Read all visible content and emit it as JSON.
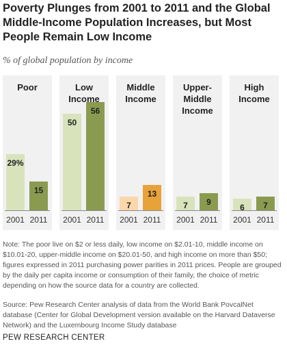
{
  "chart_data": {
    "type": "bar",
    "title": "Poverty Plunges from 2001 to 2011 and the Global Middle-Income Population Increases, but Most People Remain Low Income",
    "subtitle": "% of global population by income",
    "years": [
      "2001",
      "2011"
    ],
    "ylim": [
      0,
      60
    ],
    "groups": [
      {
        "label_lines": [
          "Poor"
        ],
        "values": [
          29,
          15
        ],
        "labels": [
          "29%",
          "15"
        ],
        "colors": [
          "#d8e3bc",
          "#8a9b50"
        ]
      },
      {
        "label_lines": [
          "Low",
          "Income"
        ],
        "values": [
          50,
          56
        ],
        "labels": [
          "50",
          "56"
        ],
        "colors": [
          "#d8e3bc",
          "#8a9b50"
        ]
      },
      {
        "label_lines": [
          "Middle",
          "Income"
        ],
        "values": [
          7,
          13
        ],
        "labels": [
          "7",
          "13"
        ],
        "colors": [
          "#fbd7aa",
          "#e8a23a"
        ]
      },
      {
        "label_lines": [
          "Upper-",
          "Middle",
          "Income"
        ],
        "values": [
          7,
          9
        ],
        "labels": [
          "7",
          "9"
        ],
        "colors": [
          "#d8e3bc",
          "#8a9b50"
        ]
      },
      {
        "label_lines": [
          "High",
          "Income"
        ],
        "values": [
          6,
          7
        ],
        "labels": [
          "6",
          "7"
        ],
        "colors": [
          "#d8e3bc",
          "#8a9b50"
        ]
      }
    ],
    "grid": false,
    "legend": "none"
  },
  "note": "Note: The poor live on $2 or less daily, low income on $2.01-10, middle income on $10.01-20, upper-middle income on $20.01-50, and high income on more than $50; figures expressed in 2011 purchasing power parities in 2011 prices. People are grouped by the daily per capita income or consumption of their family, the choice of metric depending on how the source data for a country are collected.",
  "source": "Source: Pew Research Center analysis of data from the World Bank PovcalNet database (Center for Global Development version available on the Harvard Dataverse Network) and the Luxembourg Income Study database",
  "brand": "PEW RESEARCH CENTER"
}
